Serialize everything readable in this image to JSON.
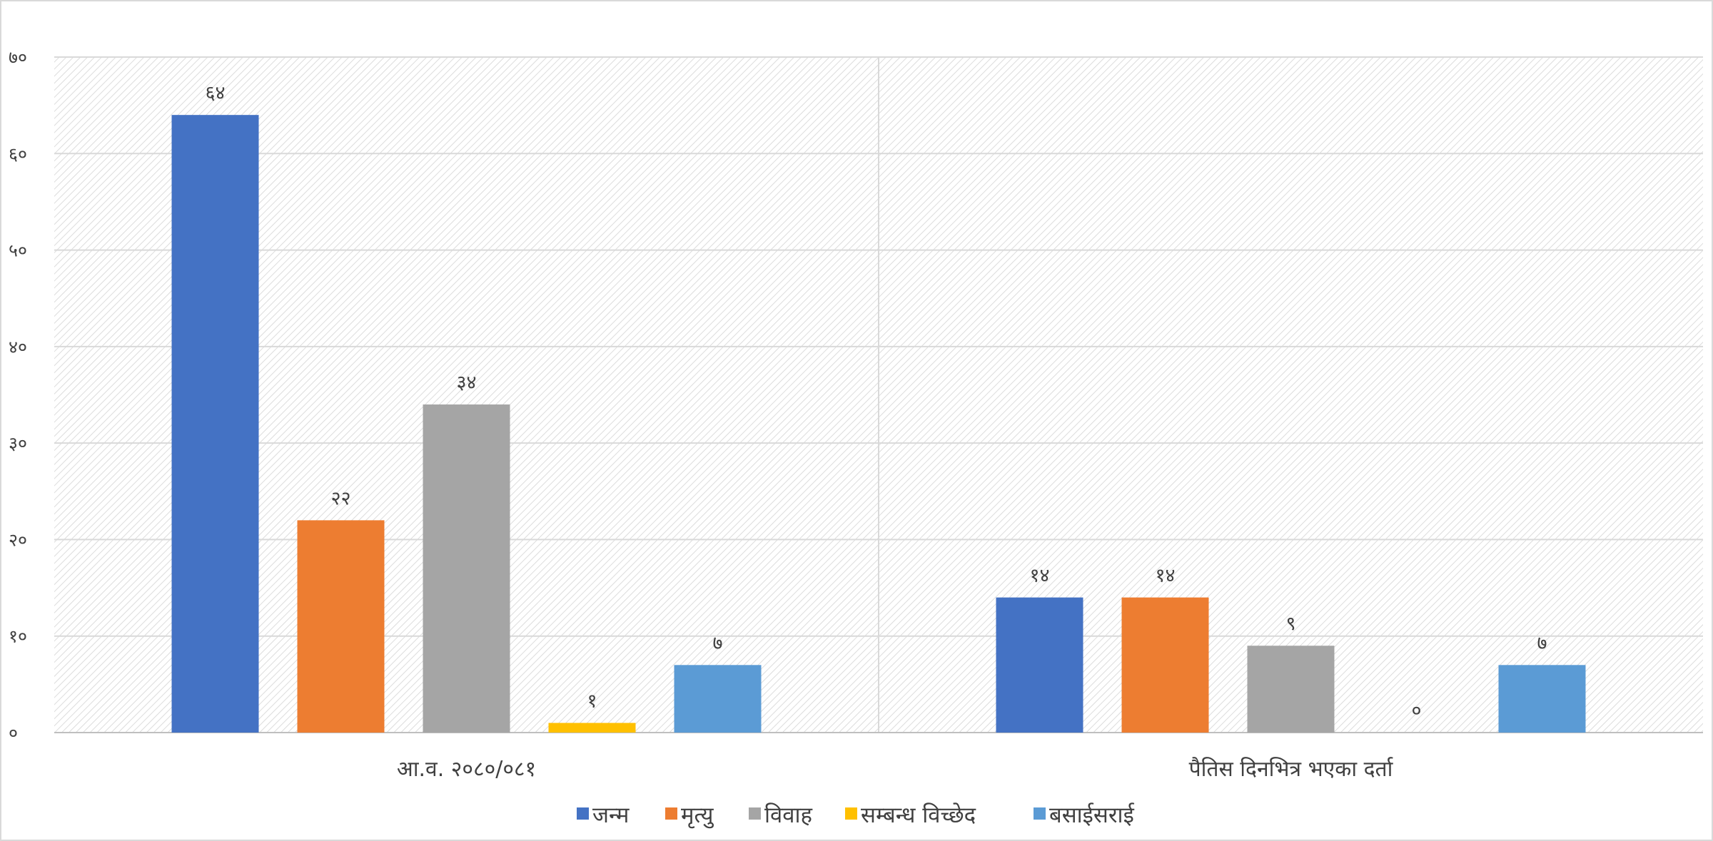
{
  "chart_data": {
    "type": "bar",
    "title": "",
    "xlabel": "",
    "ylabel": "",
    "ylim": [
      0,
      70
    ],
    "yticks": [
      {
        "value": 0,
        "label": "०"
      },
      {
        "value": 10,
        "label": "१०"
      },
      {
        "value": 20,
        "label": "२०"
      },
      {
        "value": 30,
        "label": "३०"
      },
      {
        "value": 40,
        "label": "४०"
      },
      {
        "value": 50,
        "label": "५०"
      },
      {
        "value": 60,
        "label": "६०"
      },
      {
        "value": 70,
        "label": "७०"
      }
    ],
    "grid": true,
    "legend_position": "bottom",
    "categories": [
      "आ.व. २०८०/०८१",
      "पैतिस दिनभित्र भएका दर्ता"
    ],
    "series": [
      {
        "name": "जन्म",
        "color": "#4472C4",
        "values": [
          64,
          14
        ],
        "labels": [
          "६४",
          "१४"
        ]
      },
      {
        "name": "मृत्यु",
        "color": "#ED7D31",
        "values": [
          22,
          14
        ],
        "labels": [
          "२२",
          "१४"
        ]
      },
      {
        "name": "विवाह",
        "color": "#A5A5A5",
        "values": [
          34,
          9
        ],
        "labels": [
          "३४",
          "९"
        ]
      },
      {
        "name": "सम्बन्ध विच्छेद",
        "color": "#FFC000",
        "values": [
          1,
          0
        ],
        "labels": [
          "१",
          "०"
        ]
      },
      {
        "name": "बसाईसराई",
        "color": "#5B9BD5",
        "values": [
          7,
          7
        ],
        "labels": [
          "७",
          "७"
        ]
      }
    ]
  }
}
